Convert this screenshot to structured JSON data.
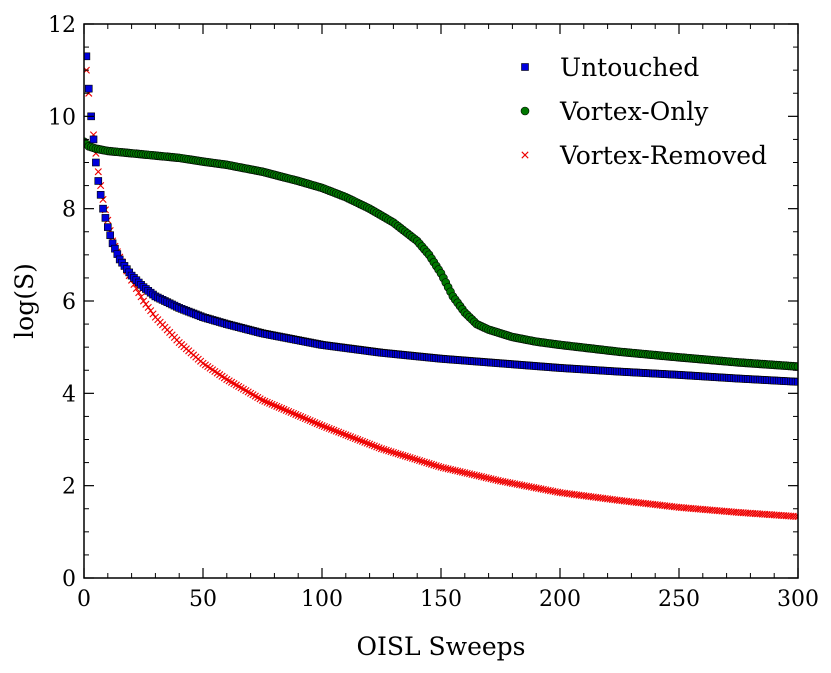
{
  "chart_data": {
    "type": "scatter",
    "title": "",
    "xlabel": "OISL Sweeps",
    "ylabel": "log(S)",
    "xlim": [
      0,
      300
    ],
    "ylim": [
      0,
      12
    ],
    "xticks": [
      "0",
      "50",
      "100",
      "150",
      "200",
      "250",
      "300"
    ],
    "yticks": [
      "0",
      "2",
      "4",
      "6",
      "8",
      "10",
      "12"
    ],
    "legend_position": "top-right",
    "grid": false,
    "series": [
      {
        "name": "Untouched",
        "marker": "square",
        "color": "#0000dd",
        "x": [
          1,
          2,
          3,
          4,
          5,
          6,
          7,
          8,
          10,
          12,
          15,
          20,
          25,
          30,
          40,
          50,
          60,
          75,
          100,
          125,
          150,
          175,
          200,
          225,
          250,
          275,
          300
        ],
        "y": [
          11.3,
          10.6,
          10.0,
          9.5,
          9.0,
          8.6,
          8.3,
          8.0,
          7.6,
          7.25,
          6.9,
          6.55,
          6.3,
          6.1,
          5.85,
          5.65,
          5.5,
          5.3,
          5.05,
          4.88,
          4.75,
          4.65,
          4.55,
          4.47,
          4.4,
          4.32,
          4.25
        ]
      },
      {
        "name": "Vortex-Only",
        "marker": "circle",
        "color": "#007700",
        "x": [
          0,
          1,
          2,
          5,
          10,
          20,
          30,
          40,
          50,
          60,
          75,
          90,
          100,
          110,
          120,
          130,
          140,
          145,
          150,
          155,
          160,
          165,
          170,
          175,
          180,
          190,
          200,
          225,
          250,
          275,
          300
        ],
        "y": [
          9.45,
          9.4,
          9.35,
          9.3,
          9.25,
          9.2,
          9.15,
          9.1,
          9.02,
          8.95,
          8.8,
          8.6,
          8.45,
          8.25,
          8.0,
          7.7,
          7.3,
          7.0,
          6.6,
          6.1,
          5.75,
          5.5,
          5.38,
          5.3,
          5.22,
          5.12,
          5.05,
          4.9,
          4.78,
          4.67,
          4.58
        ]
      },
      {
        "name": "Vortex-Removed",
        "marker": "x",
        "color": "#ee0000",
        "x": [
          1,
          2,
          3,
          4,
          5,
          6,
          7,
          8,
          10,
          12,
          15,
          20,
          25,
          30,
          40,
          50,
          60,
          75,
          100,
          125,
          150,
          175,
          200,
          225,
          250,
          275,
          300
        ],
        "y": [
          11.0,
          10.5,
          10.0,
          9.6,
          9.2,
          8.8,
          8.5,
          8.2,
          7.75,
          7.3,
          6.95,
          6.45,
          6.0,
          5.65,
          5.1,
          4.65,
          4.3,
          3.85,
          3.3,
          2.8,
          2.4,
          2.1,
          1.85,
          1.68,
          1.53,
          1.42,
          1.33
        ]
      }
    ]
  }
}
